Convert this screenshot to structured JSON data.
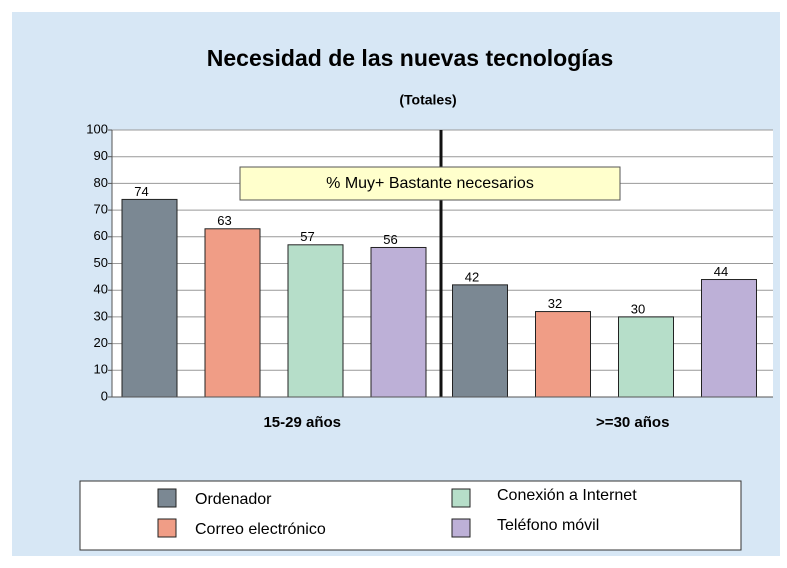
{
  "chart_data": {
    "type": "bar",
    "title": "Necesidad de las nuevas tecnologías",
    "subtitle": "(Totales)",
    "annotation": "% Muy+ Bastante necesarios",
    "categories": [
      "15-29 años",
      ">=30 años"
    ],
    "series": [
      {
        "name": "Ordenador",
        "color": "#7b8893",
        "values": [
          74,
          42
        ]
      },
      {
        "name": "Correo electrónico",
        "color": "#f09d86",
        "values": [
          63,
          32
        ]
      },
      {
        "name": "Conexión a Internet",
        "color": "#b6dec9",
        "values": [
          57,
          30
        ]
      },
      {
        "name": "Teléfono móvil",
        "color": "#bdb0d7",
        "values": [
          56,
          44
        ]
      }
    ],
    "ylim": [
      0,
      100
    ],
    "yticks": [
      0,
      10,
      20,
      30,
      40,
      50,
      60,
      70,
      80,
      90,
      100
    ],
    "grid": true
  }
}
